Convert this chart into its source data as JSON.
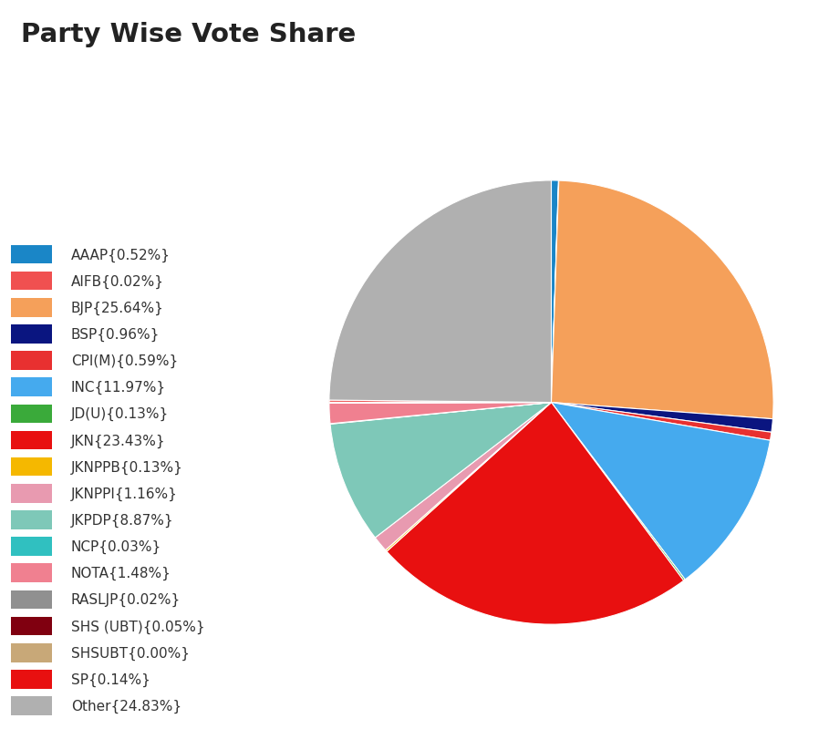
{
  "title": "Party Wise Vote Share",
  "title_bg": "#cdc0e0",
  "background": "#ffffff",
  "parties": [
    {
      "name": "AAAP",
      "value": 0.52,
      "color": "#1a86c7"
    },
    {
      "name": "AIFB",
      "value": 0.02,
      "color": "#f05050"
    },
    {
      "name": "BJP",
      "value": 25.64,
      "color": "#f5a05a"
    },
    {
      "name": "BSP",
      "value": 0.96,
      "color": "#0a1580"
    },
    {
      "name": "CPI(M)",
      "value": 0.59,
      "color": "#e83030"
    },
    {
      "name": "INC",
      "value": 11.97,
      "color": "#45aaee"
    },
    {
      "name": "JD(U)",
      "value": 0.13,
      "color": "#3aaa3a"
    },
    {
      "name": "JKN",
      "value": 23.43,
      "color": "#e81010"
    },
    {
      "name": "JKNPPB",
      "value": 0.13,
      "color": "#f5b800"
    },
    {
      "name": "JKNPPI",
      "value": 1.16,
      "color": "#e89ab0"
    },
    {
      "name": "JKPDP",
      "value": 8.87,
      "color": "#7ec8b8"
    },
    {
      "name": "NCP",
      "value": 0.03,
      "color": "#30c0c0"
    },
    {
      "name": "NOTA",
      "value": 1.48,
      "color": "#f08090"
    },
    {
      "name": "RASLJP",
      "value": 0.02,
      "color": "#909090"
    },
    {
      "name": "SHS (UBT)",
      "value": 0.05,
      "color": "#800010"
    },
    {
      "name": "SHSUBT",
      "value": 0.0,
      "color": "#c8a878"
    },
    {
      "name": "SP",
      "value": 0.14,
      "color": "#e81010"
    },
    {
      "name": "Other",
      "value": 24.83,
      "color": "#b0b0b0"
    }
  ],
  "legend_fontsize": 11,
  "title_fontsize": 21
}
